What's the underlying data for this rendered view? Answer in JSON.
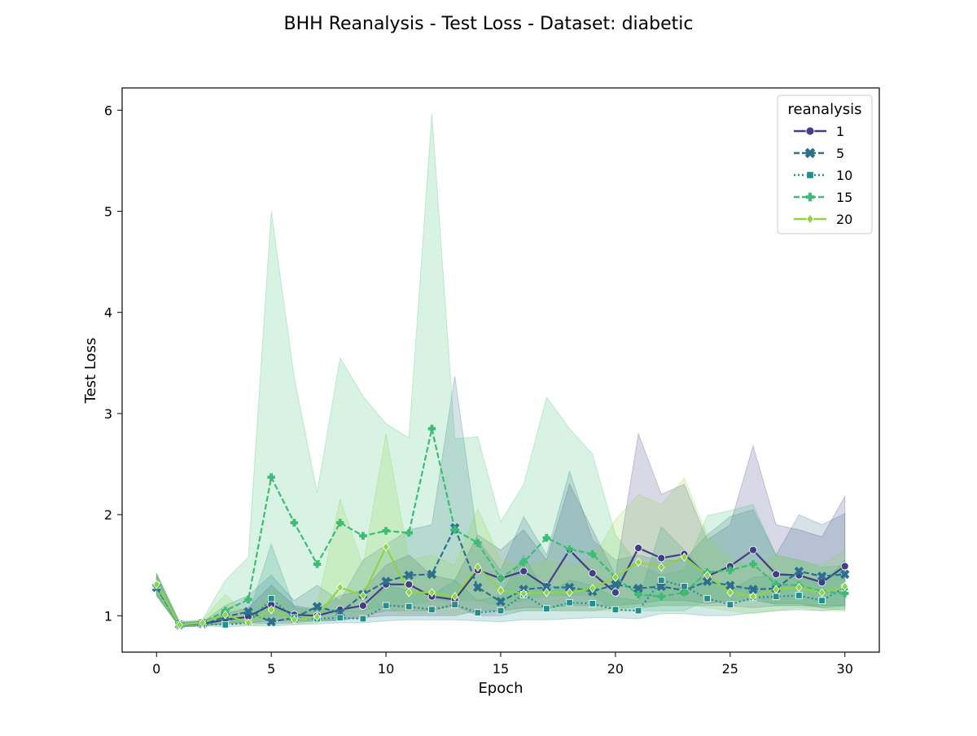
{
  "chart_data": {
    "type": "line",
    "title": "BHH Reanalysis - Test Loss - Dataset: diabetic",
    "xlabel": "Epoch",
    "ylabel": "Test Loss",
    "xlim": [
      -1.5,
      31.5
    ],
    "ylim": [
      0.64,
      6.22
    ],
    "xticks": [
      0,
      5,
      10,
      15,
      20,
      25,
      30
    ],
    "yticks": [
      1,
      2,
      3,
      4,
      5,
      6
    ],
    "grid": false,
    "legend": {
      "title": "reanalysis",
      "placement": "top-right"
    },
    "x": [
      0,
      1,
      2,
      3,
      4,
      5,
      6,
      7,
      8,
      9,
      10,
      11,
      12,
      13,
      14,
      15,
      16,
      17,
      18,
      19,
      20,
      21,
      22,
      23,
      24,
      25,
      26,
      27,
      28,
      29,
      30
    ],
    "series": [
      {
        "name": "1",
        "color": "#433e85",
        "marker": "circle",
        "dash": "solid",
        "values": [
          1.3,
          0.91,
          0.92,
          0.96,
          0.99,
          1.11,
          1.01,
          1.0,
          1.06,
          1.1,
          1.31,
          1.31,
          1.19,
          1.16,
          1.45,
          1.37,
          1.44,
          1.29,
          1.65,
          1.42,
          1.23,
          1.67,
          1.57,
          1.61,
          1.39,
          1.49,
          1.65,
          1.41,
          1.4,
          1.33,
          1.49
        ],
        "lower": [
          1.2,
          0.89,
          0.9,
          0.92,
          0.93,
          0.95,
          0.95,
          0.95,
          0.96,
          0.98,
          1.0,
          1.0,
          1.0,
          1.0,
          1.05,
          1.05,
          1.08,
          1.08,
          1.1,
          1.1,
          1.1,
          1.12,
          1.15,
          1.15,
          1.12,
          1.15,
          1.15,
          1.12,
          1.12,
          1.08,
          1.1
        ],
        "upper": [
          1.42,
          0.94,
          0.95,
          1.02,
          1.08,
          1.3,
          1.1,
          1.06,
          1.2,
          1.25,
          1.5,
          1.6,
          1.4,
          1.35,
          1.8,
          1.65,
          1.85,
          1.55,
          2.3,
          1.85,
          1.4,
          2.8,
          2.2,
          2.3,
          1.75,
          1.9,
          2.68,
          1.9,
          1.85,
          1.78,
          2.18
        ]
      },
      {
        "name": "5",
        "color": "#2d708e",
        "marker": "x",
        "dash": "dashed",
        "values": [
          1.28,
          0.91,
          0.92,
          0.99,
          1.04,
          0.94,
          0.98,
          1.09,
          1.03,
          1.21,
          1.34,
          1.4,
          1.41,
          1.87,
          1.28,
          1.14,
          1.26,
          1.28,
          1.28,
          1.24,
          1.31,
          1.27,
          1.29,
          1.25,
          1.34,
          1.3,
          1.26,
          1.27,
          1.44,
          1.39,
          1.41
        ],
        "lower": [
          1.2,
          0.89,
          0.9,
          0.93,
          0.93,
          0.92,
          0.93,
          0.95,
          0.95,
          1.0,
          1.05,
          1.05,
          1.05,
          1.1,
          1.0,
          1.0,
          1.05,
          1.05,
          1.05,
          1.05,
          1.08,
          1.08,
          1.1,
          1.1,
          1.1,
          1.1,
          1.08,
          1.1,
          1.1,
          1.1,
          1.1
        ],
        "upper": [
          1.4,
          0.93,
          0.94,
          1.1,
          1.2,
          1.4,
          1.15,
          1.3,
          1.15,
          1.55,
          1.7,
          1.85,
          1.9,
          3.37,
          1.75,
          1.45,
          1.98,
          1.6,
          2.43,
          1.75,
          1.55,
          1.6,
          1.55,
          1.55,
          1.8,
          1.98,
          2.05,
          1.6,
          2.0,
          1.9,
          2.01
        ]
      },
      {
        "name": "10",
        "color": "#21908d",
        "marker": "square",
        "dash": "dotted",
        "values": [
          1.3,
          0.91,
          0.92,
          0.91,
          0.93,
          1.17,
          0.98,
          0.97,
          0.98,
          0.97,
          1.1,
          1.09,
          1.06,
          1.11,
          1.03,
          1.05,
          1.21,
          1.07,
          1.13,
          1.12,
          1.06,
          1.05,
          1.35,
          1.29,
          1.17,
          1.11,
          1.18,
          1.19,
          1.2,
          1.15,
          1.28
        ],
        "lower": [
          1.22,
          0.89,
          0.9,
          0.89,
          0.9,
          0.9,
          0.91,
          0.92,
          0.93,
          0.93,
          0.95,
          0.96,
          0.96,
          0.96,
          0.95,
          0.94,
          0.96,
          0.96,
          0.97,
          0.98,
          0.98,
          0.97,
          1.02,
          1.02,
          1.0,
          1.0,
          1.03,
          1.05,
          1.06,
          1.05,
          1.07
        ],
        "upper": [
          1.38,
          0.93,
          0.94,
          0.95,
          1.0,
          1.71,
          1.08,
          1.05,
          1.05,
          1.04,
          1.3,
          1.25,
          1.2,
          1.35,
          1.15,
          1.2,
          1.6,
          1.2,
          1.35,
          1.3,
          1.18,
          1.15,
          1.88,
          1.65,
          1.4,
          1.25,
          1.38,
          1.4,
          1.4,
          1.3,
          1.55
        ]
      },
      {
        "name": "15",
        "color": "#3cbc75",
        "marker": "plus",
        "dash": "dashed",
        "values": [
          1.3,
          0.91,
          0.93,
          1.05,
          1.16,
          2.37,
          1.92,
          1.51,
          1.92,
          1.79,
          1.84,
          1.82,
          2.85,
          1.85,
          1.72,
          1.37,
          1.53,
          1.77,
          1.66,
          1.61,
          1.38,
          1.21,
          1.19,
          1.23,
          1.43,
          1.45,
          1.51,
          1.31,
          1.3,
          1.24,
          1.22
        ],
        "lower": [
          1.2,
          0.89,
          0.9,
          0.92,
          0.95,
          1.0,
          1.0,
          1.02,
          1.05,
          1.05,
          1.1,
          1.1,
          1.15,
          1.15,
          1.15,
          1.1,
          1.15,
          1.2,
          1.2,
          1.2,
          1.05,
          1.05,
          1.05,
          1.05,
          1.15,
          1.15,
          1.2,
          1.1,
          1.1,
          1.08,
          1.05
        ],
        "upper": [
          1.42,
          0.94,
          0.96,
          1.35,
          1.58,
          5.0,
          3.36,
          2.22,
          3.55,
          3.17,
          2.9,
          2.76,
          5.97,
          2.75,
          2.77,
          1.93,
          2.3,
          3.16,
          2.85,
          2.6,
          1.8,
          1.5,
          1.4,
          1.45,
          1.99,
          2.04,
          2.1,
          1.6,
          1.55,
          1.48,
          1.5
        ]
      },
      {
        "name": "20",
        "color": "#8dd544",
        "marker": "diamond",
        "dash": "solid",
        "values": [
          1.31,
          0.91,
          0.93,
          1.01,
          0.93,
          1.06,
          0.96,
          0.99,
          1.28,
          1.2,
          1.68,
          1.23,
          1.23,
          1.19,
          1.48,
          1.25,
          1.22,
          1.23,
          1.23,
          1.27,
          1.38,
          1.53,
          1.48,
          1.58,
          1.4,
          1.23,
          1.19,
          1.26,
          1.28,
          1.23,
          1.29
        ],
        "lower": [
          1.2,
          0.89,
          0.9,
          0.93,
          0.9,
          0.93,
          0.92,
          0.93,
          1.0,
          1.0,
          1.05,
          1.02,
          1.02,
          1.02,
          1.05,
          1.05,
          1.05,
          1.05,
          1.05,
          1.05,
          1.05,
          1.1,
          1.1,
          1.12,
          1.08,
          1.05,
          1.02,
          1.05,
          1.08,
          1.05,
          1.05
        ],
        "upper": [
          1.42,
          0.93,
          0.96,
          1.21,
          1.0,
          1.25,
          1.05,
          1.1,
          2.15,
          1.5,
          2.8,
          1.55,
          1.6,
          1.5,
          2.06,
          1.55,
          1.5,
          1.55,
          1.5,
          1.55,
          1.95,
          2.2,
          2.1,
          2.36,
          1.8,
          1.55,
          1.5,
          1.6,
          1.55,
          1.5,
          1.65
        ]
      }
    ]
  }
}
